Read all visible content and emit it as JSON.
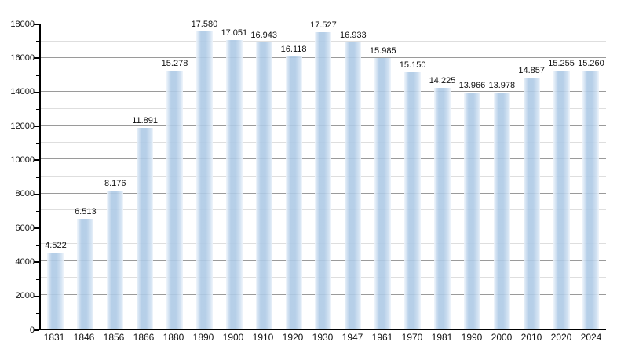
{
  "chart_data": {
    "type": "bar",
    "title": "",
    "xlabel": "",
    "ylabel": "",
    "categories": [
      "1831",
      "1846",
      "1856",
      "1866",
      "1880",
      "1890",
      "1900",
      "1910",
      "1920",
      "1930",
      "1947",
      "1961",
      "1970",
      "1981",
      "1990",
      "2000",
      "2010",
      "2020",
      "2024"
    ],
    "values": [
      4522,
      6513,
      8176,
      11891,
      15278,
      17580,
      17051,
      16943,
      16118,
      17527,
      16933,
      15985,
      15150,
      14225,
      13966,
      13978,
      14857,
      15255,
      15260
    ],
    "value_labels": [
      "4.522",
      "6.513",
      "8.176",
      "11.891",
      "15.278",
      "17.580",
      "17.051",
      "16.943",
      "16.118",
      "17.527",
      "16.933",
      "15.985",
      "15.150",
      "14.225",
      "13.966",
      "13.978",
      "14.857",
      "15.255",
      "15.260"
    ],
    "ylim": [
      0,
      18000
    ],
    "y_major_step": 2000,
    "y_minor_step": 1000,
    "y_tick_labels": [
      "0",
      "2000",
      "4000",
      "6000",
      "8000",
      "10000",
      "12000",
      "14000",
      "16000",
      "18000"
    ],
    "grid": true,
    "legend_position": "none",
    "colors": {
      "background": "#ffffff",
      "bar_fill": "#aecae6",
      "bar_fill_edge_light": "#eef4fb",
      "major_grid": "#9a9a9a",
      "minor_grid": "#dedede",
      "axis": "#000000",
      "text": "#111111"
    }
  }
}
